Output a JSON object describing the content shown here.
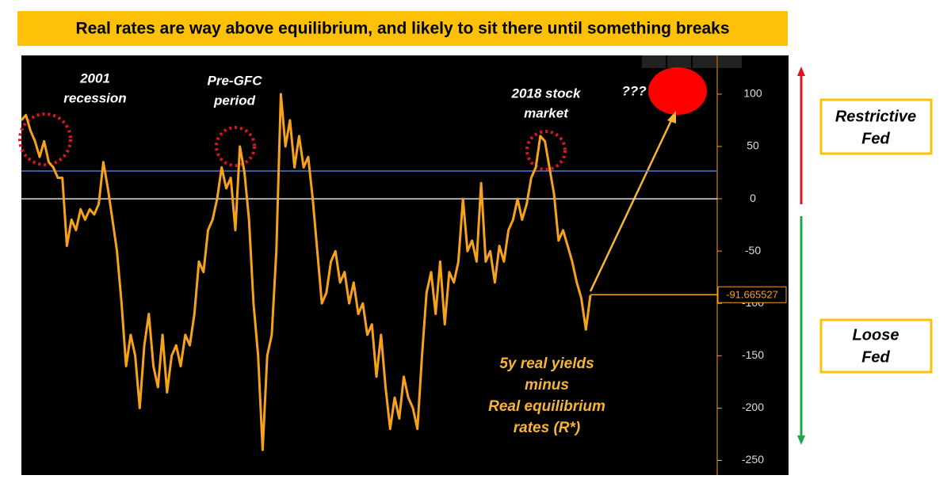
{
  "chart_data": {
    "type": "line",
    "title": "Real rates are way above equilibrium, and likely to sit there until something breaks",
    "values": [
      75,
      80,
      65,
      55,
      40,
      55,
      35,
      30,
      20,
      20,
      -45,
      -20,
      -30,
      -10,
      -20,
      -10,
      -15,
      -5,
      35,
      10,
      -20,
      -50,
      -100,
      -160,
      -130,
      -150,
      -200,
      -140,
      -110,
      -160,
      -180,
      -130,
      -185,
      -150,
      -140,
      -160,
      -130,
      -140,
      -110,
      -60,
      -70,
      -30,
      -20,
      0,
      30,
      10,
      20,
      -30,
      50,
      25,
      -20,
      -100,
      -150,
      -240,
      -150,
      -130,
      -50,
      100,
      50,
      75,
      30,
      60,
      30,
      40,
      0,
      -50,
      -100,
      -90,
      -60,
      -50,
      -80,
      -70,
      -100,
      -80,
      -110,
      -100,
      -130,
      -120,
      -170,
      -130,
      -180,
      -220,
      -190,
      -210,
      -170,
      -190,
      -200,
      -220,
      -150,
      -90,
      -70,
      -110,
      -60,
      -120,
      -70,
      -80,
      -60,
      0,
      -50,
      -40,
      -60,
      15,
      -60,
      -50,
      -80,
      -45,
      -60,
      -30,
      -20,
      0,
      -20,
      -5,
      20,
      30,
      60,
      55,
      30,
      5,
      -40,
      -30,
      -45,
      -60,
      -80,
      -95,
      -125,
      -92
    ],
    "color": "#f7a21b",
    "ylim": [
      -264,
      137
    ],
    "yticks": [
      100,
      50,
      0,
      -50,
      -100,
      -150,
      -200,
      -250
    ],
    "reference_lines": [
      {
        "value": 26.5,
        "color": "#4a7bd6"
      },
      {
        "value": 0,
        "color": "#dddddd"
      }
    ],
    "last_value": -91.665527,
    "annotations": {
      "recession_2001": [
        "2001",
        "recession"
      ],
      "pre_gfc": [
        "Pre-GFC",
        "period"
      ],
      "stock_2018": [
        "2018 stock",
        "market"
      ],
      "question": "???",
      "series_label": [
        "5y real yields",
        "minus",
        "Real equilibrium",
        "rates (R*)"
      ]
    },
    "restrictive": [
      "Restrictive",
      "Fed"
    ],
    "loose": [
      "Loose",
      "Fed"
    ]
  }
}
